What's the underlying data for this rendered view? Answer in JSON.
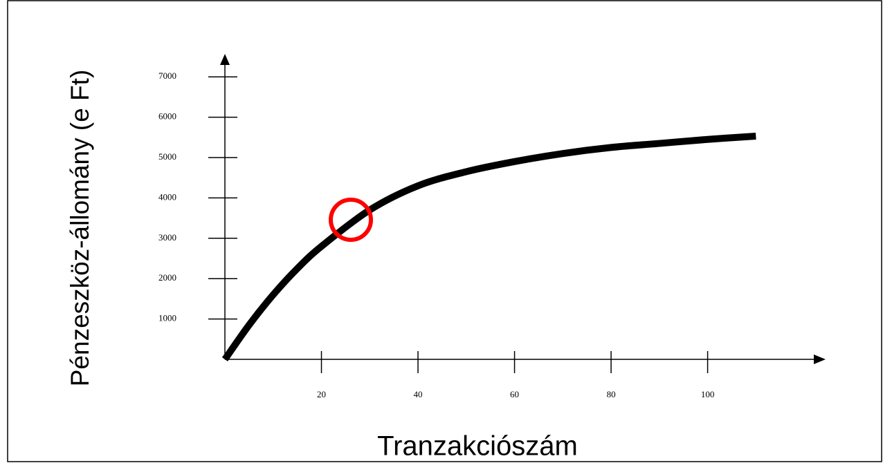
{
  "chart_data": {
    "type": "line",
    "x_label": "Tranzakciószám",
    "y_label": "Pénzeszköz-állomány (e Ft)",
    "x": [
      0,
      5,
      10,
      15,
      20,
      30,
      40,
      50,
      60,
      70,
      80,
      90,
      100,
      110
    ],
    "series": [
      {
        "color": "#000000",
        "values": [
          0,
          850,
          1600,
          2250,
          2800,
          3700,
          4300,
          4650,
          4900,
          5100,
          5250,
          5350,
          5450,
          5530
        ]
      }
    ],
    "xlim": [
      0,
      124
    ],
    "xticks": [
      20,
      40,
      60,
      80,
      100
    ],
    "ylim": [
      0,
      7500
    ],
    "yticks": [
      1000,
      2000,
      3000,
      4000,
      5000,
      6000,
      7000
    ],
    "annotation_color": "#ff0000"
  }
}
